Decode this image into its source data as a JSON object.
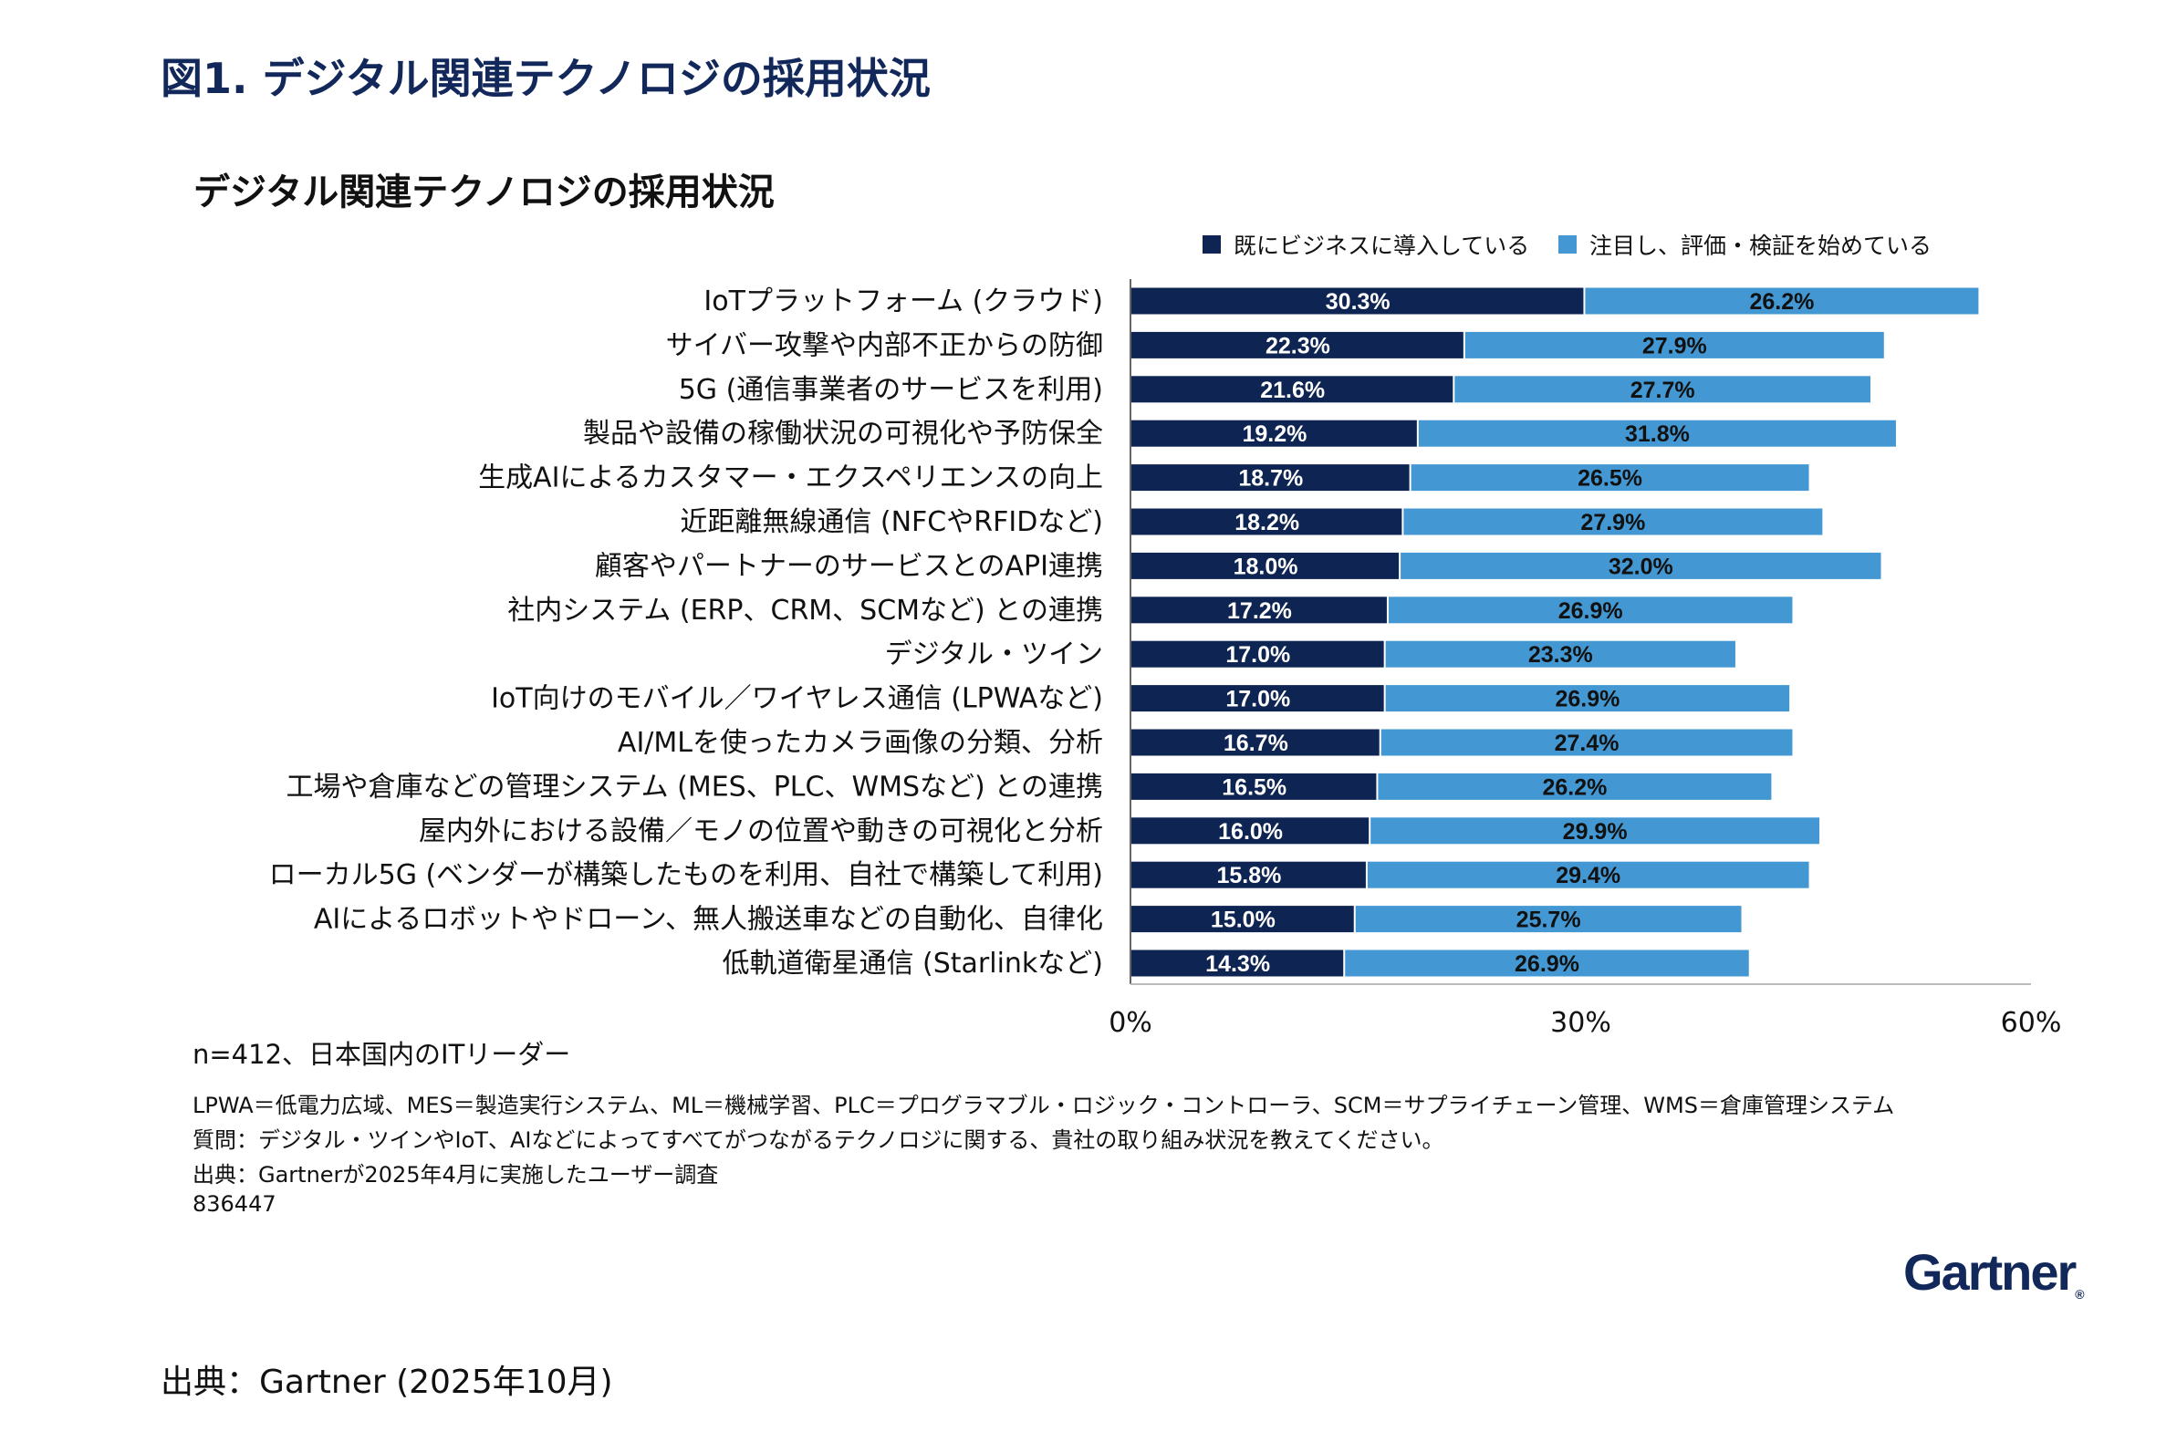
{
  "figure_title": "図1. デジタル関連テクノロジの採用状況",
  "colors": {
    "adopted": "#0e2452",
    "considering": "#4398d3"
  },
  "chart_data": {
    "type": "bar",
    "orientation": "horizontal",
    "stacked": true,
    "title": "デジタル関連テクノロジの採用状況",
    "legend_position": "top-right",
    "categories": [
      "IoTプラットフォーム (クラウド)",
      "サイバー攻撃や内部不正からの防御",
      "5G (通信事業者のサービスを利用)",
      "製品や設備の稼働状況の可視化や予防保全",
      "生成AIによるカスタマー・エクスペリエンスの向上",
      "近距離無線通信 (NFCやRFIDなど)",
      "顧客やパートナーのサービスとのAPI連携",
      "社内システム (ERP、CRM、SCMなど) との連携",
      "デジタル・ツイン",
      "IoT向けのモバイル／ワイヤレス通信 (LPWAなど)",
      "AI/MLを使ったカメラ画像の分類、分析",
      "工場や倉庫などの管理システム (MES、PLC、WMSなど) との連携",
      "屋内外における設備／モノの位置や動きの可視化と分析",
      "ローカル5G (ベンダーが構築したものを利用、自社で構築して利用)",
      "AIによるロボットやドローン、無人搬送車などの自動化、自律化",
      "低軌道衛星通信 (Starlinkなど)"
    ],
    "series": [
      {
        "name": "既にビジネスに導入している",
        "values": [
          30.3,
          22.3,
          21.6,
          19.2,
          18.7,
          18.2,
          18.0,
          17.2,
          17.0,
          17.0,
          16.7,
          16.5,
          16.0,
          15.8,
          15.0,
          14.3
        ]
      },
      {
        "name": "注目し、評価・検証を始めている",
        "values": [
          26.2,
          27.9,
          27.7,
          31.8,
          26.5,
          27.9,
          32.0,
          26.9,
          23.3,
          26.9,
          27.4,
          26.2,
          29.9,
          29.4,
          25.7,
          26.9
        ]
      }
    ],
    "xlim": [
      0,
      60
    ],
    "x_ticks": [
      "0%",
      "30%",
      "60%"
    ],
    "grid": false
  },
  "sample_note": "n=412、日本国内のITリーダー",
  "notes": [
    "LPWA＝低電力広域、MES＝製造実行システム、ML＝機械学習、PLC＝プログラマブル・ロジック・コントローラ、SCM＝サプライチェーン管理、WMS＝倉庫管理システム",
    "質問：デジタル・ツインやIoT、AIなどによってすべてがつながるテクノロジに関する、貴社の取り組み状況を教えてください。",
    "出典：Gartnerが2025年4月に実施したユーザー調査",
    "836447"
  ],
  "logo": "Gartner",
  "source": "出典：Gartner (2025年10月)"
}
